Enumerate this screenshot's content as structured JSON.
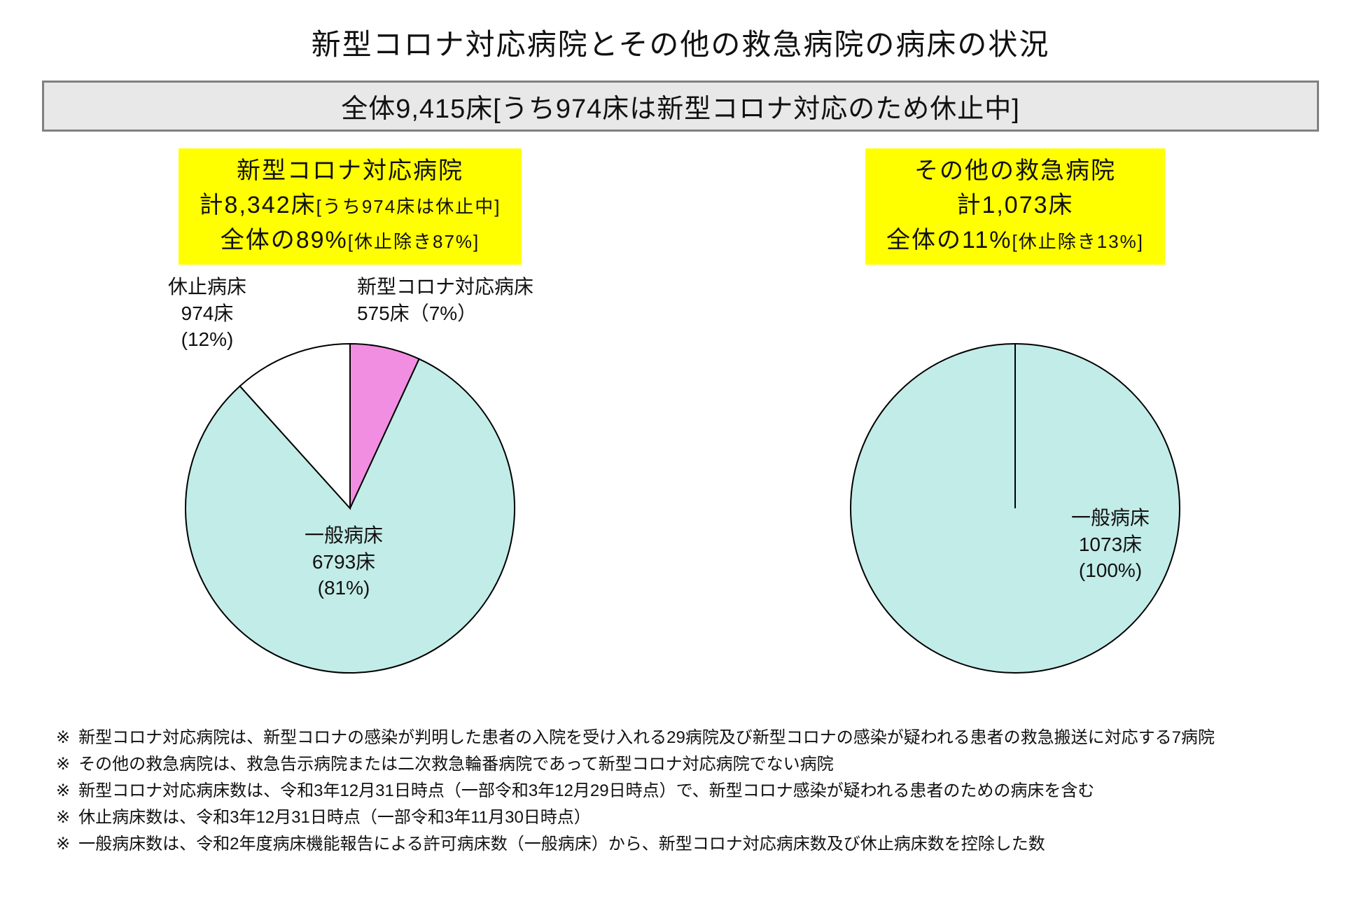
{
  "title": "新型コロナ対応病院とその他の救急病院の病床の状況",
  "summary_banner": "全体9,415床[うち974床は新型コロナ対応のため休止中]",
  "colors": {
    "general": "#c2ece8",
    "covid": "#f18ee1",
    "suspended": "#ffffff",
    "stroke": "#000000",
    "banner_bg": "#e8e8e8",
    "banner_border": "#808080",
    "highlight_bg": "#ffff00",
    "page_bg": "#ffffff",
    "text": "#111111"
  },
  "left": {
    "header": {
      "line1": "新型コロナ対応病院",
      "line2_main": "計8,342床",
      "line2_sub": "[うち974床は休止中]",
      "line3_main": "全体の89%",
      "line3_sub": "[休止除き87%]"
    },
    "pie": {
      "type": "pie",
      "radius": 235,
      "stroke_width": 2,
      "slices": [
        {
          "key": "covid",
          "value": 575,
          "pct": 7,
          "color": "#f18ee1",
          "label_lines": [
            "新型コロナ対応病床",
            "575床（7%）"
          ]
        },
        {
          "key": "general",
          "value": 6793,
          "pct": 81,
          "color": "#c2ece8",
          "label_lines": [
            "一般病床",
            "6793床",
            "(81%)"
          ]
        },
        {
          "key": "suspended",
          "value": 974,
          "pct": 12,
          "color": "#ffffff",
          "label_lines": [
            "休止病床",
            "974床",
            "(12%)"
          ]
        }
      ]
    }
  },
  "right": {
    "header": {
      "line1": "その他の救急病院",
      "line2_main": "計1,073床",
      "line2_sub": "",
      "line3_main": "全体の11%",
      "line3_sub": "[休止除き13%]"
    },
    "pie": {
      "type": "pie",
      "radius": 235,
      "stroke_width": 2,
      "slices": [
        {
          "key": "general",
          "value": 1073,
          "pct": 100,
          "color": "#c2ece8",
          "label_lines": [
            "一般病床",
            "1073床",
            "(100%)"
          ]
        }
      ]
    }
  },
  "footnotes": [
    "新型コロナ対応病院は、新型コロナの感染が判明した患者の入院を受け入れる29病院及び新型コロナの感染が疑われる患者の救急搬送に対応する7病院",
    "その他の救急病院は、救急告示病院または二次救急輪番病院であって新型コロナ対応病院でない病院",
    "新型コロナ対応病床数は、令和3年12月31日時点（一部令和3年12月29日時点）で、新型コロナ感染が疑われる患者のための病床を含む",
    "休止病床数は、令和3年12月31日時点（一部令和3年11月30日時点）",
    "一般病床数は、令和2年度病床機能報告による許可病床数（一般病床）から、新型コロナ対応病床数及び休止病床数を控除した数"
  ],
  "footnote_marker": "※"
}
